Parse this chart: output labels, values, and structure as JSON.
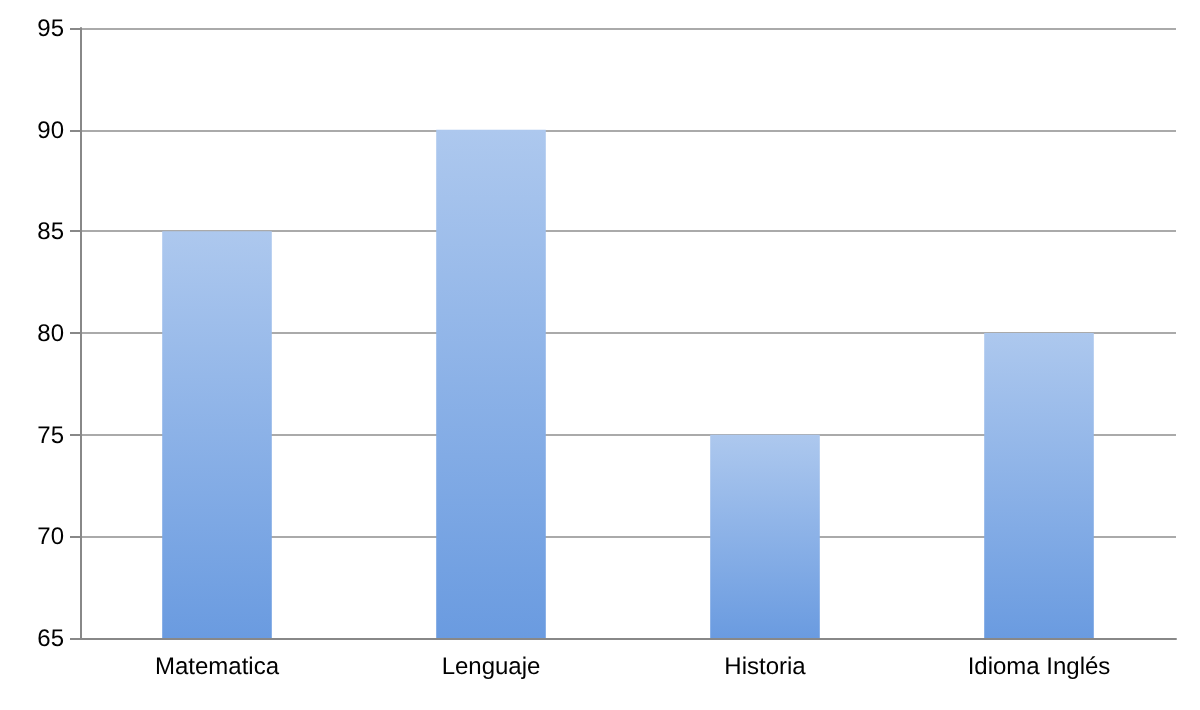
{
  "chart_data": {
    "type": "bar",
    "categories": [
      "Matematica",
      "Lenguaje",
      "Historia",
      "Idioma Inglés"
    ],
    "values": [
      85,
      90,
      75,
      80
    ],
    "color": "#6a9be0",
    "ylim": [
      65,
      95
    ],
    "yticks": [
      65,
      70,
      75,
      80,
      85,
      90,
      95
    ],
    "grid": "y"
  }
}
